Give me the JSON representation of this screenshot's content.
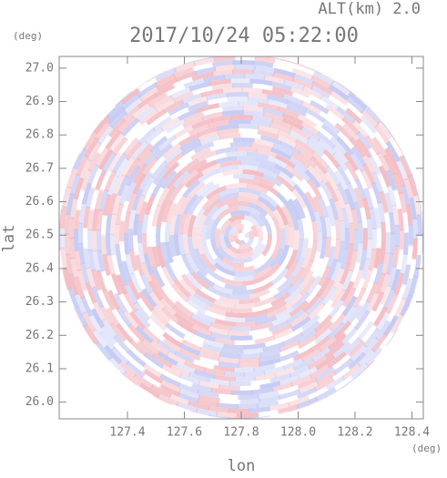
{
  "chart_data": {
    "type": "radar-field",
    "title": "2017/10/24 05:22:00",
    "altitude_label": "ALT(km) 2.0",
    "x_label": "lon",
    "y_label": "lat",
    "x_unit": "(deg)",
    "y_unit": "(deg)",
    "xlim": [
      127.16,
      128.44
    ],
    "ylim": [
      25.95,
      27.035
    ],
    "xticks": [
      {
        "value": 127.4,
        "label": "127.4"
      },
      {
        "value": 127.6,
        "label": "127.6"
      },
      {
        "value": 127.8,
        "label": "127.8"
      },
      {
        "value": 128.0,
        "label": "128.0"
      },
      {
        "value": 128.2,
        "label": "128.2"
      },
      {
        "value": 128.4,
        "label": "128.4"
      }
    ],
    "yticks": [
      {
        "value": 26.0,
        "label": "26.0"
      },
      {
        "value": 26.1,
        "label": "26.1"
      },
      {
        "value": 26.2,
        "label": "26.2"
      },
      {
        "value": 26.3,
        "label": "26.3"
      },
      {
        "value": 26.4,
        "label": "26.4"
      },
      {
        "value": 26.5,
        "label": "26.5"
      },
      {
        "value": 26.6,
        "label": "26.6"
      },
      {
        "value": 26.7,
        "label": "26.7"
      },
      {
        "value": 26.8,
        "label": "26.8"
      },
      {
        "value": 26.9,
        "label": "26.9"
      },
      {
        "value": 27.0,
        "label": "27.0"
      }
    ]
  }
}
